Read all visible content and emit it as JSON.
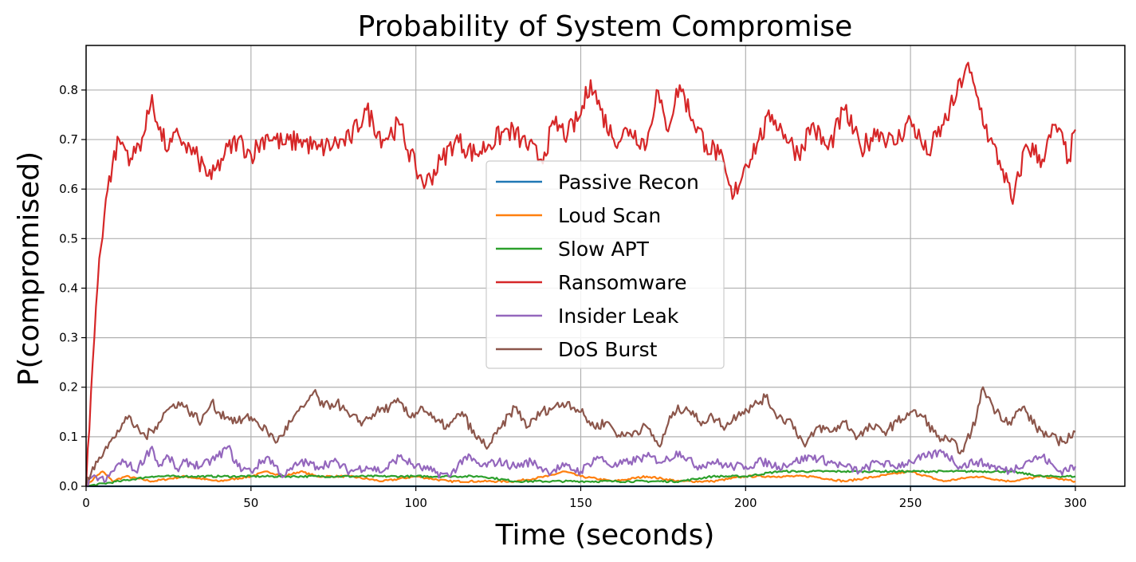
{
  "chart_data": {
    "type": "line",
    "title": "Probability of System Compromise",
    "xlabel": "Time (seconds)",
    "ylabel": "P(compromised)",
    "xlim": [
      0,
      315
    ],
    "ylim": [
      0,
      0.89
    ],
    "xticks": [
      0,
      50,
      100,
      150,
      200,
      250,
      300
    ],
    "yticks": [
      0.0,
      0.1,
      0.2,
      0.3,
      0.4,
      0.5,
      0.6,
      0.7,
      0.8
    ],
    "xtick_labels": [
      "0",
      "50",
      "100",
      "150",
      "200",
      "250",
      "300"
    ],
    "ytick_labels": [
      "0.0",
      "0.1",
      "0.2",
      "0.3",
      "0.4",
      "0.5",
      "0.6",
      "0.7",
      "0.8"
    ],
    "grid": true,
    "legend_position": "center",
    "series": [
      {
        "name": "Passive Recon",
        "color": "#1f77b4",
        "x": [
          0,
          300
        ],
        "y": [
          0.0,
          0.0
        ]
      },
      {
        "name": "Loud Scan",
        "color": "#ff7f0e",
        "x": [
          0,
          3,
          5,
          8,
          12,
          20,
          30,
          40,
          50,
          55,
          60,
          65,
          70,
          80,
          90,
          100,
          110,
          120,
          130,
          140,
          145,
          150,
          160,
          170,
          180,
          190,
          200,
          210,
          220,
          230,
          240,
          250,
          260,
          270,
          280,
          290,
          300
        ],
        "y": [
          0.0,
          0.02,
          0.03,
          0.01,
          0.02,
          0.01,
          0.02,
          0.01,
          0.02,
          0.03,
          0.02,
          0.03,
          0.02,
          0.02,
          0.01,
          0.02,
          0.01,
          0.01,
          0.01,
          0.02,
          0.03,
          0.02,
          0.01,
          0.02,
          0.01,
          0.01,
          0.02,
          0.02,
          0.02,
          0.01,
          0.02,
          0.03,
          0.01,
          0.02,
          0.01,
          0.02,
          0.01
        ]
      },
      {
        "name": "Slow APT",
        "color": "#2ca02c",
        "x": [
          0,
          10,
          20,
          30,
          50,
          70,
          90,
          100,
          110,
          120,
          130,
          150,
          160,
          180,
          190,
          200,
          210,
          220,
          230,
          240,
          250,
          260,
          270,
          280,
          290,
          300
        ],
        "y": [
          0.0,
          0.01,
          0.02,
          0.02,
          0.02,
          0.02,
          0.02,
          0.02,
          0.02,
          0.02,
          0.01,
          0.01,
          0.01,
          0.01,
          0.02,
          0.02,
          0.03,
          0.03,
          0.03,
          0.03,
          0.03,
          0.03,
          0.03,
          0.03,
          0.02,
          0.02
        ]
      },
      {
        "name": "Ransomware",
        "color": "#d62728",
        "x": [
          0,
          2,
          4,
          6,
          8,
          10,
          14,
          18,
          20,
          22,
          25,
          28,
          30,
          34,
          38,
          42,
          46,
          50,
          55,
          60,
          65,
          70,
          75,
          80,
          85,
          90,
          95,
          100,
          103,
          108,
          112,
          118,
          122,
          128,
          132,
          138,
          142,
          146,
          150,
          153,
          156,
          160,
          165,
          170,
          173,
          176,
          180,
          184,
          188,
          192,
          196,
          200,
          204,
          208,
          212,
          216,
          220,
          225,
          230,
          235,
          240,
          245,
          250,
          255,
          260,
          264,
          267,
          270,
          274,
          278,
          281,
          285,
          290,
          294,
          298,
          300
        ],
        "y": [
          0.0,
          0.25,
          0.46,
          0.58,
          0.65,
          0.7,
          0.66,
          0.72,
          0.79,
          0.72,
          0.68,
          0.71,
          0.69,
          0.66,
          0.62,
          0.67,
          0.7,
          0.67,
          0.71,
          0.69,
          0.7,
          0.68,
          0.69,
          0.7,
          0.76,
          0.7,
          0.73,
          0.64,
          0.61,
          0.66,
          0.7,
          0.67,
          0.69,
          0.72,
          0.7,
          0.66,
          0.73,
          0.71,
          0.75,
          0.82,
          0.76,
          0.7,
          0.72,
          0.69,
          0.8,
          0.72,
          0.81,
          0.74,
          0.69,
          0.67,
          0.58,
          0.65,
          0.7,
          0.75,
          0.71,
          0.67,
          0.73,
          0.68,
          0.76,
          0.68,
          0.72,
          0.69,
          0.74,
          0.67,
          0.73,
          0.79,
          0.85,
          0.79,
          0.7,
          0.64,
          0.57,
          0.69,
          0.66,
          0.73,
          0.66,
          0.72
        ]
      },
      {
        "name": "Insider Leak",
        "color": "#9467bd",
        "x": [
          0,
          3,
          6,
          9,
          12,
          15,
          18,
          20,
          22,
          25,
          28,
          30,
          35,
          40,
          43,
          46,
          50,
          55,
          60,
          65,
          70,
          75,
          80,
          85,
          90,
          95,
          100,
          105,
          110,
          115,
          120,
          125,
          130,
          135,
          140,
          145,
          150,
          155,
          160,
          165,
          170,
          175,
          180,
          185,
          190,
          195,
          200,
          205,
          210,
          215,
          220,
          225,
          230,
          235,
          240,
          245,
          250,
          255,
          260,
          265,
          270,
          275,
          280,
          285,
          290,
          295,
          300
        ],
        "y": [
          0.0,
          0.02,
          0.01,
          0.04,
          0.05,
          0.03,
          0.06,
          0.08,
          0.04,
          0.06,
          0.03,
          0.05,
          0.04,
          0.06,
          0.08,
          0.04,
          0.03,
          0.06,
          0.02,
          0.05,
          0.04,
          0.05,
          0.03,
          0.04,
          0.03,
          0.06,
          0.04,
          0.03,
          0.02,
          0.06,
          0.04,
          0.05,
          0.04,
          0.05,
          0.03,
          0.04,
          0.03,
          0.06,
          0.04,
          0.05,
          0.06,
          0.05,
          0.07,
          0.04,
          0.05,
          0.04,
          0.04,
          0.05,
          0.04,
          0.05,
          0.06,
          0.05,
          0.04,
          0.03,
          0.05,
          0.04,
          0.05,
          0.06,
          0.07,
          0.04,
          0.05,
          0.04,
          0.03,
          0.05,
          0.06,
          0.03,
          0.04
        ]
      },
      {
        "name": "DoS Burst",
        "color": "#8c564b",
        "x": [
          0,
          3,
          6,
          9,
          12,
          15,
          18,
          21,
          24,
          28,
          30,
          35,
          38,
          40,
          43,
          46,
          50,
          55,
          58,
          62,
          66,
          69,
          72,
          76,
          80,
          84,
          88,
          92,
          95,
          98,
          102,
          106,
          110,
          114,
          118,
          122,
          126,
          130,
          134,
          138,
          142,
          146,
          150,
          154,
          158,
          162,
          166,
          170,
          174,
          178,
          182,
          186,
          190,
          194,
          198,
          202,
          206,
          210,
          214,
          218,
          222,
          226,
          230,
          234,
          238,
          242,
          246,
          250,
          254,
          258,
          262,
          266,
          270,
          272,
          276,
          280,
          284,
          288,
          292,
          296,
          300
        ],
        "y": [
          0.0,
          0.05,
          0.08,
          0.1,
          0.14,
          0.12,
          0.1,
          0.12,
          0.15,
          0.17,
          0.16,
          0.13,
          0.17,
          0.15,
          0.14,
          0.13,
          0.14,
          0.11,
          0.09,
          0.13,
          0.16,
          0.19,
          0.16,
          0.17,
          0.14,
          0.13,
          0.15,
          0.16,
          0.17,
          0.14,
          0.16,
          0.13,
          0.12,
          0.15,
          0.1,
          0.08,
          0.12,
          0.16,
          0.12,
          0.15,
          0.16,
          0.17,
          0.15,
          0.12,
          0.13,
          0.1,
          0.11,
          0.12,
          0.08,
          0.15,
          0.16,
          0.13,
          0.14,
          0.12,
          0.15,
          0.16,
          0.18,
          0.14,
          0.13,
          0.08,
          0.12,
          0.11,
          0.13,
          0.1,
          0.12,
          0.11,
          0.13,
          0.15,
          0.14,
          0.1,
          0.09,
          0.07,
          0.14,
          0.2,
          0.15,
          0.13,
          0.16,
          0.12,
          0.1,
          0.09,
          0.11
        ]
      }
    ]
  }
}
